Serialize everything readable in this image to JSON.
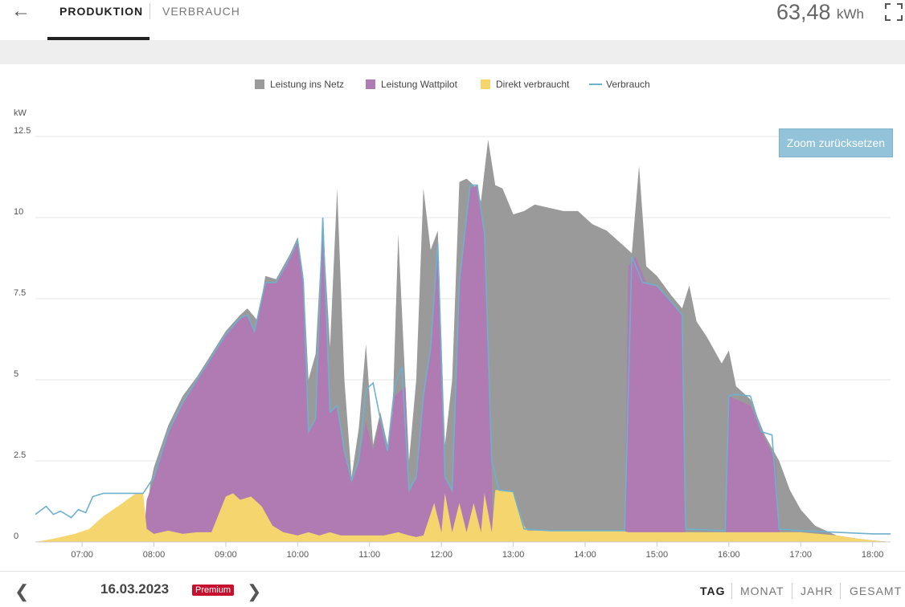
{
  "header": {
    "back_icon": "arrow-left-icon",
    "tabs": [
      "PRODUKTION",
      "VERBRAUCH"
    ],
    "active_tab": "PRODUKTION",
    "total_energy": "63,48",
    "total_energy_unit": "kWh",
    "fullscreen_icon": "fullscreen-icon"
  },
  "chart": {
    "zoom_reset_label": "Zoom zurücksetzen"
  },
  "footer": {
    "date": "16.03.2023",
    "badge": "Premium",
    "periods": [
      "TAG",
      "MONAT",
      "JAHR",
      "GESAMT"
    ],
    "active_period": "TAG"
  },
  "colors": {
    "netz": "#9a9a9a",
    "wattpilot": "#b07ab3",
    "direkt": "#f5d56d",
    "verbrauch": "#6fb1cc",
    "premium": "#c8102e",
    "zoom_button": "#92c3d9"
  },
  "chart_data": {
    "type": "area",
    "ylabel": "kW",
    "ylim": [
      0,
      12.5
    ],
    "yticks": [
      "0",
      "2.5",
      "5",
      "7.5",
      "10",
      "12.5"
    ],
    "xticks": [
      "07:00",
      "08:00",
      "09:00",
      "10:00",
      "11:00",
      "12:00",
      "13:00",
      "14:00",
      "15:00",
      "16:00",
      "17:00",
      "18:00"
    ],
    "xlim": [
      6.35,
      18.25
    ],
    "legend_position": "top",
    "grid": true,
    "stacked": true,
    "series": [
      {
        "name": "Leistung ins Netz",
        "kind": "area",
        "color": "#9a9a9a",
        "points": [
          [
            6.35,
            0
          ],
          [
            6.6,
            0
          ],
          [
            7.0,
            0
          ],
          [
            7.4,
            0
          ],
          [
            7.85,
            0
          ],
          [
            7.95,
            1.8
          ],
          [
            8.0,
            2.3
          ],
          [
            8.2,
            3.6
          ],
          [
            8.4,
            4.5
          ],
          [
            8.6,
            5.1
          ],
          [
            8.8,
            5.8
          ],
          [
            9.0,
            6.5
          ],
          [
            9.2,
            7.0
          ],
          [
            9.3,
            7.2
          ],
          [
            9.45,
            6.8
          ],
          [
            9.55,
            8.2
          ],
          [
            9.7,
            8.1
          ],
          [
            9.9,
            8.9
          ],
          [
            10.0,
            9.4
          ],
          [
            10.08,
            8.2
          ],
          [
            10.15,
            5.0
          ],
          [
            10.25,
            5.8
          ],
          [
            10.35,
            9.9
          ],
          [
            10.45,
            6.0
          ],
          [
            10.55,
            10.9
          ],
          [
            10.65,
            5.0
          ],
          [
            10.75,
            2.0
          ],
          [
            10.85,
            3.5
          ],
          [
            10.95,
            6.1
          ],
          [
            11.05,
            3.0
          ],
          [
            11.15,
            4.0
          ],
          [
            11.3,
            2.5
          ],
          [
            11.4,
            9.5
          ],
          [
            11.55,
            2.5
          ],
          [
            11.65,
            5.0
          ],
          [
            11.75,
            10.9
          ],
          [
            11.85,
            9.0
          ],
          [
            11.95,
            9.6
          ],
          [
            12.05,
            3.0
          ],
          [
            12.15,
            5.0
          ],
          [
            12.25,
            11.1
          ],
          [
            12.35,
            11.2
          ],
          [
            12.45,
            11.0
          ],
          [
            12.55,
            10.5
          ],
          [
            12.65,
            12.4
          ],
          [
            12.75,
            11.0
          ],
          [
            12.85,
            10.9
          ],
          [
            13.0,
            10.1
          ],
          [
            13.15,
            10.2
          ],
          [
            13.3,
            10.4
          ],
          [
            13.5,
            10.3
          ],
          [
            13.7,
            10.2
          ],
          [
            13.9,
            10.2
          ],
          [
            14.1,
            9.8
          ],
          [
            14.3,
            9.6
          ],
          [
            14.5,
            9.2
          ],
          [
            14.65,
            8.9
          ],
          [
            14.75,
            11.6
          ],
          [
            14.85,
            8.5
          ],
          [
            15.0,
            8.2
          ],
          [
            15.2,
            7.6
          ],
          [
            15.35,
            7.2
          ],
          [
            15.45,
            7.9
          ],
          [
            15.55,
            6.8
          ],
          [
            15.7,
            6.3
          ],
          [
            15.9,
            5.5
          ],
          [
            16.0,
            5.9
          ],
          [
            16.1,
            4.8
          ],
          [
            16.3,
            4.4
          ],
          [
            16.5,
            3.3
          ],
          [
            16.7,
            2.5
          ],
          [
            16.85,
            1.6
          ],
          [
            17.0,
            1.0
          ],
          [
            17.2,
            0.5
          ],
          [
            17.5,
            0.2
          ],
          [
            17.8,
            0.1
          ],
          [
            18.0,
            0.05
          ],
          [
            18.25,
            0
          ]
        ]
      },
      {
        "name": "Leistung Wattpilot",
        "kind": "area",
        "color": "#b07ab3",
        "points": [
          [
            6.35,
            0
          ],
          [
            7.85,
            0
          ],
          [
            7.9,
            1.3
          ],
          [
            8.0,
            1.9
          ],
          [
            8.2,
            3.4
          ],
          [
            8.4,
            4.3
          ],
          [
            8.6,
            5.0
          ],
          [
            8.8,
            5.7
          ],
          [
            9.0,
            6.4
          ],
          [
            9.2,
            6.9
          ],
          [
            9.3,
            7.0
          ],
          [
            9.4,
            6.5
          ],
          [
            9.55,
            8.0
          ],
          [
            9.7,
            8.0
          ],
          [
            9.9,
            8.8
          ],
          [
            10.0,
            9.3
          ],
          [
            10.08,
            8.0
          ],
          [
            10.15,
            3.4
          ],
          [
            10.25,
            3.8
          ],
          [
            10.35,
            9.7
          ],
          [
            10.45,
            4.0
          ],
          [
            10.55,
            4.2
          ],
          [
            10.65,
            2.8
          ],
          [
            10.75,
            1.8
          ],
          [
            10.85,
            2.5
          ],
          [
            10.95,
            3.7
          ],
          [
            11.05,
            2.8
          ],
          [
            11.15,
            3.8
          ],
          [
            11.25,
            2.8
          ],
          [
            11.35,
            4.5
          ],
          [
            11.5,
            4.8
          ],
          [
            11.55,
            1.5
          ],
          [
            11.65,
            2.0
          ],
          [
            11.75,
            4.5
          ],
          [
            11.85,
            6.0
          ],
          [
            11.95,
            9.0
          ],
          [
            12.05,
            2.0
          ],
          [
            12.15,
            1.5
          ],
          [
            12.25,
            8.0
          ],
          [
            12.4,
            10.9
          ],
          [
            12.5,
            11.0
          ],
          [
            12.6,
            9.5
          ],
          [
            12.7,
            2.0
          ],
          [
            12.72,
            0
          ],
          [
            13.0,
            0
          ],
          [
            14.55,
            0
          ],
          [
            14.6,
            8.5
          ],
          [
            14.7,
            8.8
          ],
          [
            14.85,
            8.0
          ],
          [
            15.0,
            7.9
          ],
          [
            15.2,
            7.4
          ],
          [
            15.35,
            7.0
          ],
          [
            15.38,
            1.0
          ],
          [
            15.4,
            0
          ],
          [
            15.95,
            0
          ],
          [
            15.98,
            2.0
          ],
          [
            16.0,
            4.5
          ],
          [
            16.1,
            4.4
          ],
          [
            16.3,
            4.2
          ],
          [
            16.5,
            3.2
          ],
          [
            16.65,
            2.5
          ],
          [
            16.7,
            0.5
          ],
          [
            16.72,
            0
          ],
          [
            18.25,
            0
          ]
        ]
      },
      {
        "name": "Direkt verbraucht",
        "kind": "area",
        "color": "#f5d56d",
        "points": [
          [
            6.35,
            0
          ],
          [
            6.6,
            0.1
          ],
          [
            6.9,
            0.25
          ],
          [
            7.1,
            0.4
          ],
          [
            7.3,
            0.8
          ],
          [
            7.5,
            1.1
          ],
          [
            7.75,
            1.5
          ],
          [
            7.85,
            1.5
          ],
          [
            7.9,
            0.4
          ],
          [
            8.0,
            0.25
          ],
          [
            8.2,
            0.35
          ],
          [
            8.4,
            0.25
          ],
          [
            8.6,
            0.3
          ],
          [
            8.8,
            0.3
          ],
          [
            9.0,
            1.4
          ],
          [
            9.1,
            1.5
          ],
          [
            9.2,
            1.3
          ],
          [
            9.35,
            1.4
          ],
          [
            9.5,
            1.1
          ],
          [
            9.65,
            0.5
          ],
          [
            9.8,
            0.3
          ],
          [
            10.0,
            0.2
          ],
          [
            10.15,
            0.3
          ],
          [
            10.3,
            0.2
          ],
          [
            10.45,
            0.3
          ],
          [
            10.6,
            0.2
          ],
          [
            10.8,
            0.2
          ],
          [
            11.0,
            0.2
          ],
          [
            11.2,
            0.2
          ],
          [
            11.4,
            0.3
          ],
          [
            11.55,
            0.2
          ],
          [
            11.65,
            0.15
          ],
          [
            11.75,
            0.2
          ],
          [
            11.9,
            1.2
          ],
          [
            12.0,
            0.3
          ],
          [
            12.05,
            1.5
          ],
          [
            12.15,
            0.3
          ],
          [
            12.25,
            1.2
          ],
          [
            12.35,
            0.3
          ],
          [
            12.45,
            1.2
          ],
          [
            12.55,
            0.3
          ],
          [
            12.6,
            1.5
          ],
          [
            12.7,
            0.3
          ],
          [
            12.75,
            1.6
          ],
          [
            12.85,
            1.6
          ],
          [
            13.0,
            1.55
          ],
          [
            13.15,
            0.5
          ],
          [
            13.2,
            0.35
          ],
          [
            13.5,
            0.35
          ],
          [
            14.0,
            0.35
          ],
          [
            14.5,
            0.35
          ],
          [
            14.6,
            0.3
          ],
          [
            15.0,
            0.3
          ],
          [
            15.4,
            0.3
          ],
          [
            16.0,
            0.3
          ],
          [
            16.5,
            0.3
          ],
          [
            17.0,
            0.3
          ],
          [
            17.5,
            0.2
          ],
          [
            17.8,
            0.1
          ],
          [
            18.0,
            0.05
          ],
          [
            18.25,
            0
          ]
        ]
      },
      {
        "name": "Verbrauch",
        "kind": "line",
        "color": "#6fb1cc",
        "points": [
          [
            6.35,
            0.85
          ],
          [
            6.5,
            1.1
          ],
          [
            6.6,
            0.85
          ],
          [
            6.7,
            0.95
          ],
          [
            6.85,
            0.75
          ],
          [
            6.95,
            1.0
          ],
          [
            7.05,
            0.9
          ],
          [
            7.15,
            1.4
          ],
          [
            7.3,
            1.5
          ],
          [
            7.5,
            1.5
          ],
          [
            7.7,
            1.5
          ],
          [
            7.85,
            1.5
          ],
          [
            8.0,
            2.0
          ],
          [
            8.2,
            3.4
          ],
          [
            8.4,
            4.3
          ],
          [
            8.6,
            5.0
          ],
          [
            8.8,
            5.7
          ],
          [
            9.0,
            6.4
          ],
          [
            9.2,
            6.9
          ],
          [
            9.3,
            7.0
          ],
          [
            9.4,
            6.5
          ],
          [
            9.55,
            8.0
          ],
          [
            9.7,
            8.0
          ],
          [
            9.9,
            8.8
          ],
          [
            10.0,
            9.3
          ],
          [
            10.08,
            8.0
          ],
          [
            10.15,
            3.4
          ],
          [
            10.25,
            3.8
          ],
          [
            10.35,
            10.0
          ],
          [
            10.45,
            4.0
          ],
          [
            10.55,
            4.2
          ],
          [
            10.65,
            2.8
          ],
          [
            10.75,
            1.9
          ],
          [
            10.85,
            2.5
          ],
          [
            10.95,
            4.7
          ],
          [
            11.05,
            4.9
          ],
          [
            11.15,
            3.8
          ],
          [
            11.25,
            2.8
          ],
          [
            11.35,
            4.8
          ],
          [
            11.45,
            5.4
          ],
          [
            11.55,
            1.6
          ],
          [
            11.65,
            2.0
          ],
          [
            11.75,
            4.5
          ],
          [
            11.85,
            6.0
          ],
          [
            11.95,
            9.2
          ],
          [
            12.05,
            2.0
          ],
          [
            12.15,
            1.6
          ],
          [
            12.25,
            8.0
          ],
          [
            12.4,
            11.0
          ],
          [
            12.5,
            11.0
          ],
          [
            12.6,
            9.5
          ],
          [
            12.7,
            2.5
          ],
          [
            12.8,
            1.6
          ],
          [
            13.0,
            1.55
          ],
          [
            13.15,
            0.4
          ],
          [
            13.5,
            0.35
          ],
          [
            14.0,
            0.35
          ],
          [
            14.55,
            0.35
          ],
          [
            14.65,
            8.8
          ],
          [
            14.8,
            8.0
          ],
          [
            15.0,
            7.9
          ],
          [
            15.2,
            7.4
          ],
          [
            15.35,
            7.0
          ],
          [
            15.4,
            0.4
          ],
          [
            15.95,
            0.35
          ],
          [
            16.0,
            4.5
          ],
          [
            16.1,
            4.55
          ],
          [
            16.3,
            4.5
          ],
          [
            16.45,
            3.4
          ],
          [
            16.6,
            3.3
          ],
          [
            16.7,
            0.4
          ],
          [
            17.0,
            0.35
          ],
          [
            17.5,
            0.3
          ],
          [
            18.0,
            0.25
          ],
          [
            18.25,
            0.25
          ]
        ]
      }
    ]
  }
}
